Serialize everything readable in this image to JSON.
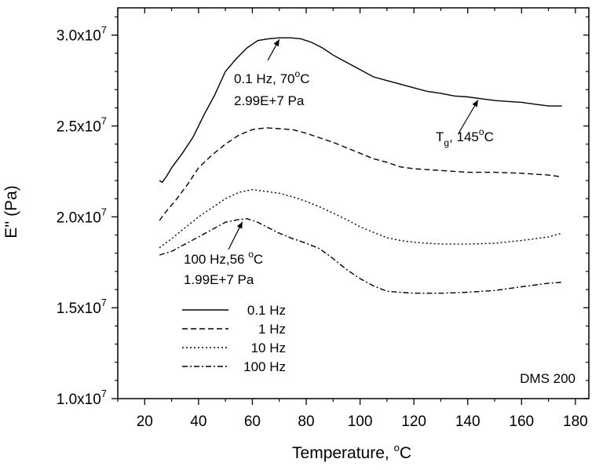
{
  "chart_data": {
    "type": "line",
    "title": "",
    "xlabel": "Temperature, ",
    "xlabel_unit": "C",
    "xlabel_sup": "o",
    "ylabel": "E'' (Pa)",
    "xlim": [
      10,
      185
    ],
    "ylim": [
      10000000,
      31500000
    ],
    "x_ticks": [
      20,
      40,
      60,
      80,
      100,
      120,
      140,
      160,
      180
    ],
    "x_tick_labels": [
      "20",
      "40",
      "60",
      "80",
      "100",
      "120",
      "140",
      "160",
      "180"
    ],
    "y_ticks": [
      10000000,
      15000000,
      20000000,
      25000000,
      30000000
    ],
    "y_tick_labels": [
      {
        "mant": "1.0x10",
        "exp": "7"
      },
      {
        "mant": "1.5x10",
        "exp": "7"
      },
      {
        "mant": "2.0x10",
        "exp": "7"
      },
      {
        "mant": "2.5x10",
        "exp": "7"
      },
      {
        "mant": "3.0x10",
        "exp": "7"
      }
    ],
    "grid": false,
    "legend_position": "lower-left",
    "corner_label": "DMS 200",
    "series": [
      {
        "name": "0.1 Hz",
        "dash": "solid",
        "points": [
          [
            25.5,
            22000000
          ],
          [
            26.5,
            21900000
          ],
          [
            28,
            22200000
          ],
          [
            30,
            22700000
          ],
          [
            34,
            23500000
          ],
          [
            38,
            24400000
          ],
          [
            42,
            25600000
          ],
          [
            46,
            26700000
          ],
          [
            50,
            28000000
          ],
          [
            54,
            28700000
          ],
          [
            58,
            29300000
          ],
          [
            62,
            29700000
          ],
          [
            66,
            29800000
          ],
          [
            70,
            29850000
          ],
          [
            74,
            29850000
          ],
          [
            78,
            29800000
          ],
          [
            82,
            29600000
          ],
          [
            86,
            29300000
          ],
          [
            90,
            28900000
          ],
          [
            95,
            28500000
          ],
          [
            100,
            28100000
          ],
          [
            105,
            27700000
          ],
          [
            110,
            27500000
          ],
          [
            115,
            27300000
          ],
          [
            120,
            27100000
          ],
          [
            125,
            26900000
          ],
          [
            130,
            26800000
          ],
          [
            135,
            26650000
          ],
          [
            140,
            26600000
          ],
          [
            145,
            26500000
          ],
          [
            150,
            26400000
          ],
          [
            155,
            26350000
          ],
          [
            160,
            26300000
          ],
          [
            165,
            26200000
          ],
          [
            170,
            26100000
          ],
          [
            175,
            26100000
          ]
        ]
      },
      {
        "name": "1 Hz",
        "dash": "dashed",
        "points": [
          [
            25.5,
            19800000
          ],
          [
            28,
            20300000
          ],
          [
            32,
            21000000
          ],
          [
            36,
            21800000
          ],
          [
            40,
            22700000
          ],
          [
            45,
            23400000
          ],
          [
            50,
            24000000
          ],
          [
            55,
            24500000
          ],
          [
            60,
            24800000
          ],
          [
            65,
            24900000
          ],
          [
            70,
            24850000
          ],
          [
            75,
            24800000
          ],
          [
            80,
            24600000
          ],
          [
            85,
            24350000
          ],
          [
            90,
            24100000
          ],
          [
            95,
            23800000
          ],
          [
            100,
            23500000
          ],
          [
            105,
            23200000
          ],
          [
            110,
            23000000
          ],
          [
            115,
            22750000
          ],
          [
            120,
            22650000
          ],
          [
            130,
            22550000
          ],
          [
            140,
            22450000
          ],
          [
            150,
            22450000
          ],
          [
            160,
            22400000
          ],
          [
            170,
            22300000
          ],
          [
            175,
            22200000
          ]
        ]
      },
      {
        "name": "10 Hz",
        "dash": "dotted",
        "points": [
          [
            25.5,
            18300000
          ],
          [
            30,
            18800000
          ],
          [
            35,
            19400000
          ],
          [
            40,
            20000000
          ],
          [
            45,
            20500000
          ],
          [
            50,
            21000000
          ],
          [
            55,
            21350000
          ],
          [
            60,
            21500000
          ],
          [
            65,
            21400000
          ],
          [
            70,
            21300000
          ],
          [
            75,
            21100000
          ],
          [
            80,
            20850000
          ],
          [
            85,
            20550000
          ],
          [
            90,
            20200000
          ],
          [
            95,
            19850000
          ],
          [
            100,
            19450000
          ],
          [
            105,
            19150000
          ],
          [
            110,
            18850000
          ],
          [
            115,
            18700000
          ],
          [
            120,
            18600000
          ],
          [
            125,
            18550000
          ],
          [
            130,
            18500000
          ],
          [
            140,
            18500000
          ],
          [
            150,
            18550000
          ],
          [
            160,
            18700000
          ],
          [
            170,
            18900000
          ],
          [
            175,
            19100000
          ]
        ]
      },
      {
        "name": "100 Hz",
        "dash": "dashdot",
        "points": [
          [
            25.5,
            17900000
          ],
          [
            30,
            18100000
          ],
          [
            35,
            18500000
          ],
          [
            40,
            18900000
          ],
          [
            45,
            19300000
          ],
          [
            50,
            19700000
          ],
          [
            55,
            19850000
          ],
          [
            58,
            19900000
          ],
          [
            62,
            19700000
          ],
          [
            66,
            19400000
          ],
          [
            70,
            19100000
          ],
          [
            75,
            18800000
          ],
          [
            80,
            18550000
          ],
          [
            85,
            18250000
          ],
          [
            90,
            17700000
          ],
          [
            95,
            17100000
          ],
          [
            100,
            16600000
          ],
          [
            105,
            16200000
          ],
          [
            110,
            15900000
          ],
          [
            115,
            15850000
          ],
          [
            120,
            15800000
          ],
          [
            130,
            15800000
          ],
          [
            140,
            15850000
          ],
          [
            150,
            15950000
          ],
          [
            160,
            16150000
          ],
          [
            170,
            16350000
          ],
          [
            175,
            16400000
          ]
        ]
      }
    ],
    "annotations": [
      {
        "lines": [
          "0.1 Hz, 70",
          "2.99E+7 Pa"
        ],
        "sup": "o",
        "unit": "C",
        "arrow_to": [
          70,
          29850000
        ]
      },
      {
        "lines": [
          "100 Hz,56 ",
          "1.99E+7 Pa"
        ],
        "sup": "o",
        "unit": "C",
        "arrow_to": [
          56,
          19900000
        ]
      },
      {
        "prefix": "T",
        "sub": "g",
        "mid": ", 145",
        "sup": "o",
        "unit": "C",
        "arrow_to": [
          145,
          26600000
        ]
      }
    ]
  }
}
